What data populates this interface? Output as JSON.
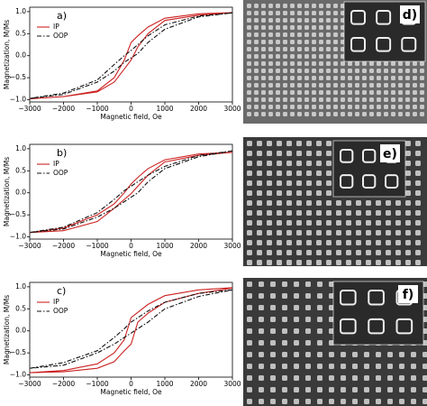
{
  "chart_data": [
    {
      "type": "line",
      "panel_label": "a)",
      "xlabel": "Magnetic field, Oe",
      "ylabel": "Magnetization, M/Ms",
      "xlim": [
        -3000,
        3000
      ],
      "ylim": [
        -1.05,
        1.1
      ],
      "xticks": [
        {
          "value": -3000,
          "label": "−3000"
        },
        {
          "value": -2000,
          "label": "−2000"
        },
        {
          "value": -1000,
          "label": "−1000"
        },
        0,
        1000,
        2000,
        3000
      ],
      "yticks": [
        {
          "value": -1,
          "label": "−1.0"
        },
        {
          "value": -0.5,
          "label": "−0.5"
        },
        {
          "value": 0,
          "label": "0.0"
        },
        {
          "value": 0.5,
          "label": "0.5"
        },
        {
          "value": 1,
          "label": "1.0"
        }
      ],
      "legend": "upper left",
      "series": [
        {
          "name": "IP",
          "color": "#cc2222",
          "dash": "solid",
          "x": [
            3000,
            2000,
            1000,
            500,
            200,
            0,
            -200,
            -500,
            -1000,
            -2000,
            -3000,
            -2000,
            -1000,
            -500,
            -200,
            0,
            200,
            500,
            1000,
            2000,
            3000
          ],
          "values": [
            0.98,
            0.95,
            0.85,
            0.65,
            0.45,
            0.3,
            -0.1,
            -0.5,
            -0.8,
            -0.93,
            -0.98,
            -0.93,
            -0.82,
            -0.6,
            -0.3,
            -0.1,
            0.2,
            0.5,
            0.8,
            0.92,
            0.98
          ]
        },
        {
          "name": "OOP",
          "color": "#111111",
          "dash": "dashdot",
          "x": [
            3000,
            2000,
            1000,
            500,
            200,
            0,
            -200,
            -500,
            -1000,
            -2000,
            -3000,
            -2000,
            -1000,
            -500,
            -200,
            0,
            200,
            500,
            1000,
            2000,
            3000
          ],
          "values": [
            0.97,
            0.9,
            0.7,
            0.45,
            0.25,
            0.12,
            0,
            -0.2,
            -0.55,
            -0.85,
            -0.97,
            -0.88,
            -0.6,
            -0.35,
            -0.15,
            -0.05,
            0.05,
            0.3,
            0.6,
            0.88,
            0.97
          ]
        }
      ]
    },
    {
      "type": "line",
      "panel_label": "b)",
      "xlabel": "Magnetic field, Oe",
      "ylabel": "Magnetization, M/Ms",
      "xlim": [
        -3000,
        3000
      ],
      "ylim": [
        -1.05,
        1.1
      ],
      "xticks": [
        {
          "value": -3000,
          "label": "−3000"
        },
        {
          "value": -2000,
          "label": "−2000"
        },
        {
          "value": -1000,
          "label": "−1000"
        },
        0,
        1000,
        2000,
        3000
      ],
      "yticks": [
        {
          "value": -1,
          "label": "−1.0"
        },
        {
          "value": -0.5,
          "label": "−0.5"
        },
        {
          "value": 0,
          "label": "0.0"
        },
        {
          "value": 0.5,
          "label": "0.5"
        },
        {
          "value": 1,
          "label": "1.0"
        }
      ],
      "legend": "upper left",
      "series": [
        {
          "name": "IP",
          "color": "#cc2222",
          "dash": "solid",
          "x": [
            3000,
            2000,
            1000,
            500,
            200,
            0,
            -200,
            -500,
            -1000,
            -2000,
            -3000,
            -2000,
            -1000,
            -500,
            -200,
            0,
            200,
            500,
            1000,
            2000,
            3000
          ],
          "values": [
            0.92,
            0.88,
            0.75,
            0.55,
            0.35,
            0.2,
            0,
            -0.25,
            -0.5,
            -0.8,
            -0.9,
            -0.86,
            -0.65,
            -0.35,
            -0.15,
            -0.02,
            0.15,
            0.4,
            0.7,
            0.85,
            0.92
          ]
        },
        {
          "name": "OOP",
          "color": "#111111",
          "dash": "dashdot",
          "x": [
            3000,
            2000,
            1000,
            500,
            200,
            0,
            -200,
            -500,
            -1000,
            -2000,
            -3000,
            -2000,
            -1000,
            -500,
            -200,
            0,
            200,
            500,
            1000,
            2000,
            3000
          ],
          "values": [
            0.95,
            0.85,
            0.6,
            0.4,
            0.25,
            0.15,
            0.05,
            -0.15,
            -0.45,
            -0.78,
            -0.9,
            -0.82,
            -0.55,
            -0.35,
            -0.2,
            -0.1,
            0,
            0.25,
            0.55,
            0.82,
            0.95
          ]
        }
      ]
    },
    {
      "type": "line",
      "panel_label": "c)",
      "xlabel": "Magnetic field, Oe",
      "ylabel": "Magnetization, M/Ms",
      "xlim": [
        -3000,
        3000
      ],
      "ylim": [
        -1.05,
        1.1
      ],
      "xticks": [
        {
          "value": -3000,
          "label": "−3000"
        },
        {
          "value": -2000,
          "label": "−2000"
        },
        {
          "value": -1000,
          "label": "−1000"
        },
        0,
        1000,
        2000,
        3000
      ],
      "yticks": [
        {
          "value": -1,
          "label": "−1.0"
        },
        {
          "value": -0.5,
          "label": "−0.5"
        },
        {
          "value": 0,
          "label": "0.0"
        },
        {
          "value": 0.5,
          "label": "0.5"
        },
        {
          "value": 1,
          "label": "1.0"
        }
      ],
      "legend": "upper left",
      "series": [
        {
          "name": "IP",
          "color": "#cc2222",
          "dash": "solid",
          "x": [
            3000,
            2000,
            1000,
            500,
            200,
            0,
            -200,
            -500,
            -1000,
            -2000,
            -3000,
            -2000,
            -1000,
            -500,
            -200,
            0,
            200,
            500,
            1000,
            2000,
            3000
          ],
          "values": [
            0.98,
            0.93,
            0.8,
            0.6,
            0.42,
            0.3,
            -0.2,
            -0.5,
            -0.75,
            -0.9,
            -0.95,
            -0.93,
            -0.85,
            -0.7,
            -0.45,
            -0.3,
            0.2,
            0.4,
            0.65,
            0.85,
            0.97
          ]
        },
        {
          "name": "OOP",
          "color": "#111111",
          "dash": "dashdot",
          "x": [
            3000,
            2000,
            1000,
            500,
            200,
            0,
            -200,
            -500,
            -1000,
            -2000,
            -3000,
            -2000,
            -1000,
            -500,
            -200,
            0,
            200,
            500,
            1000,
            2000,
            3000
          ],
          "values": [
            0.93,
            0.85,
            0.65,
            0.45,
            0.3,
            0.2,
            0.05,
            -0.15,
            -0.45,
            -0.72,
            -0.85,
            -0.78,
            -0.5,
            -0.3,
            -0.15,
            -0.05,
            0.05,
            0.2,
            0.5,
            0.78,
            0.93
          ]
        }
      ]
    }
  ],
  "images": [
    {
      "label": "d)"
    },
    {
      "label": "e)"
    },
    {
      "label": "f)"
    }
  ]
}
